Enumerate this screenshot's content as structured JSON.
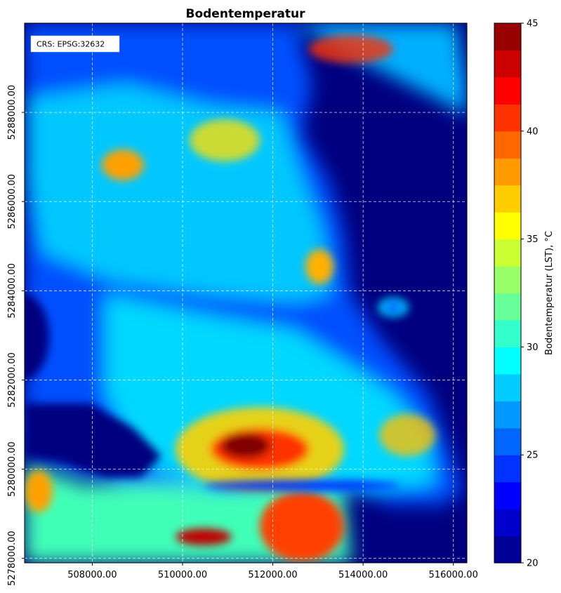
{
  "chart_data": {
    "type": "heatmap",
    "title": "Bodentemperatur",
    "xlabel": "",
    "ylabel": "",
    "annotation": "CRS: EPSG:32632",
    "x_range": [
      506500,
      516300
    ],
    "y_range": [
      5277900,
      5290000
    ],
    "x_ticks": [
      508000,
      510000,
      512000,
      514000,
      516000
    ],
    "x_tick_labels": [
      "508000.00",
      "510000.00",
      "512000.00",
      "514000.00",
      "516000.00"
    ],
    "y_ticks": [
      5278000,
      5280000,
      5282000,
      5284000,
      5286000,
      5288000
    ],
    "y_tick_labels": [
      "5278000.00",
      "5280000.00",
      "5282000.00",
      "5284000.00",
      "5286000.00",
      "5288000.00"
    ],
    "grid": true,
    "colorbar": {
      "label": "Bodentemperatur (LST), °C",
      "min": 20,
      "max": 45,
      "levels": 20,
      "ticks": [
        20,
        25,
        30,
        35,
        40,
        45
      ],
      "tick_labels": [
        "20",
        "25",
        "30",
        "35",
        "40",
        "45"
      ],
      "colormap": "jet"
    }
  }
}
